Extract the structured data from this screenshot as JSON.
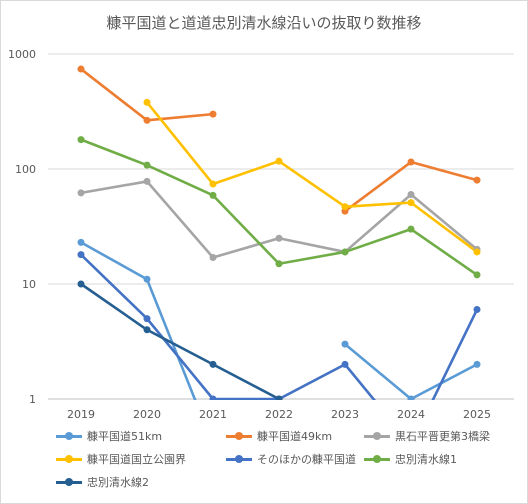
{
  "chart_data": {
    "type": "line",
    "title": "糠平国道と道道忠別清水線沿いの抜取り数推移",
    "xlabel": "",
    "ylabel": "",
    "y_scale": "log",
    "ylim": [
      1,
      1000
    ],
    "y_ticks": [
      "1",
      "10",
      "100",
      "1000"
    ],
    "categories": [
      "2019",
      "2020",
      "2021",
      "2022",
      "2023",
      "2024",
      "2025"
    ],
    "grid": true,
    "legend_position": "bottom",
    "series": [
      {
        "name": "糠平国道51km",
        "color": "#5b9bd5",
        "values": [
          23,
          11,
          0.4,
          null,
          3,
          1,
          2
        ]
      },
      {
        "name": "糠平国道49km",
        "color": "#ed7d31",
        "values": [
          740,
          265,
          300,
          null,
          43,
          115,
          80
        ]
      },
      {
        "name": "黒石平晋更第3橋梁",
        "color": "#a5a5a5",
        "values": [
          62,
          78,
          17,
          25,
          19,
          60,
          20
        ]
      },
      {
        "name": "糠平国道国立公園界",
        "color": "#ffc000",
        "values": [
          null,
          380,
          74,
          117,
          47,
          51,
          19
        ]
      },
      {
        "name": "そのほかの糠平国道",
        "color": "#4472c4",
        "values": [
          18,
          5,
          1,
          1,
          2,
          0.4,
          6
        ]
      },
      {
        "name": "忠別清水線1",
        "color": "#70ad47",
        "values": [
          180,
          108,
          59,
          15,
          19,
          30,
          12
        ]
      },
      {
        "name": "忠別清水線2",
        "color": "#255e91",
        "values": [
          10,
          4,
          2,
          1,
          null,
          null,
          null
        ]
      }
    ]
  }
}
